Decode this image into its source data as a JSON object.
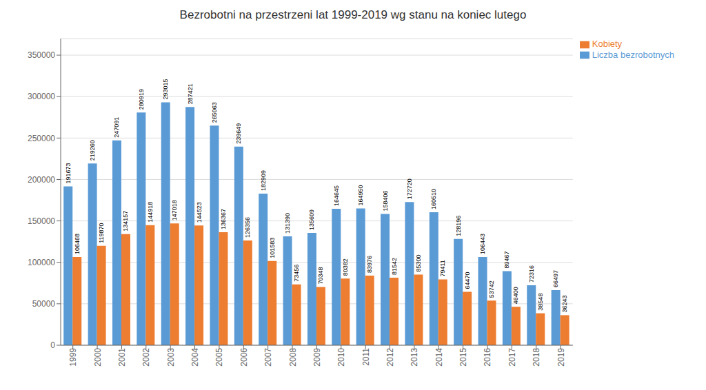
{
  "chart_data": {
    "type": "bar",
    "title": "Bezrobotni na przestrzeni lat 1999-2019 wg stanu na koniec lutego",
    "categories": [
      "1999",
      "2000",
      "2001",
      "2002",
      "2003",
      "2004",
      "2005",
      "2006",
      "2007",
      "2008",
      "2009",
      "2010",
      "2011",
      "2012",
      "2013",
      "2014",
      "2015",
      "2016",
      "2017",
      "2018",
      "2019"
    ],
    "series": [
      {
        "name": "Liczba bezrobotnych",
        "color": "#5B9BD5",
        "values": [
          191673,
          219260,
          247091,
          280919,
          293015,
          287421,
          265063,
          239649,
          182909,
          131390,
          135609,
          164645,
          164950,
          158406,
          172720,
          160510,
          128196,
          106443,
          89467,
          72316,
          66497
        ]
      },
      {
        "name": "Kobiety",
        "color": "#ED7D31",
        "values": [
          106468,
          119870,
          134157,
          144918,
          147018,
          144523,
          136367,
          126356,
          101583,
          73456,
          70348,
          80382,
          83976,
          81542,
          85300,
          79411,
          64470,
          53742,
          46400,
          38548,
          36243
        ]
      }
    ],
    "ylim": [
      0,
      370000
    ],
    "yticks": [
      0,
      50000,
      100000,
      150000,
      200000,
      250000,
      300000,
      350000
    ],
    "grid": true,
    "legend": "upper right",
    "data_labels": true
  }
}
